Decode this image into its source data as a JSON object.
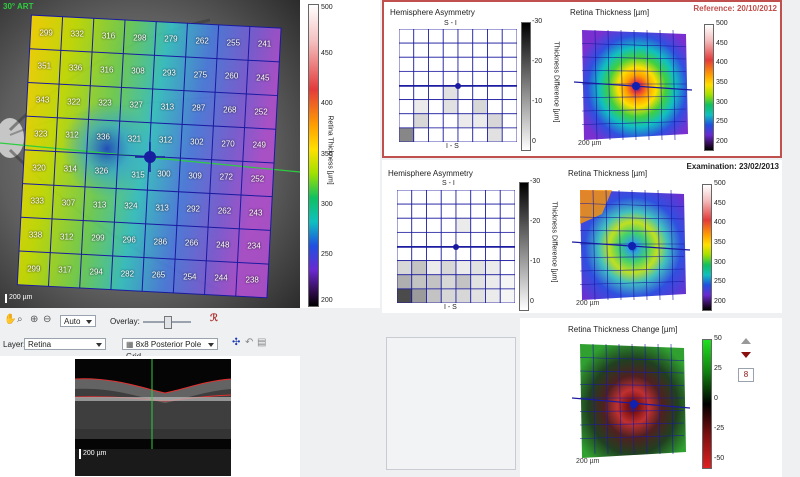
{
  "fundus": {
    "eye_label": "30° ART",
    "scale_label": "200 µm",
    "grid_values": [
      [
        299,
        332,
        316,
        298,
        279,
        262,
        255,
        241
      ],
      [
        351,
        336,
        316,
        308,
        293,
        275,
        260,
        245
      ],
      [
        343,
        322,
        323,
        327,
        313,
        287,
        268,
        252
      ],
      [
        323,
        312,
        336,
        321,
        312,
        302,
        270,
        249
      ],
      [
        320,
        314,
        326,
        315,
        300,
        309,
        272,
        252
      ],
      [
        333,
        307,
        313,
        324,
        313,
        292,
        262,
        243
      ],
      [
        338,
        312,
        299,
        296,
        286,
        266,
        248,
        234
      ],
      [
        299,
        317,
        294,
        282,
        265,
        254,
        244,
        238
      ]
    ]
  },
  "thickness_scale": {
    "title": "Retina Thickness [µm]",
    "ticks": [
      "500",
      "450",
      "400",
      "350",
      "300",
      "250",
      "200"
    ]
  },
  "toolbar": {
    "zoom_value": "Auto",
    "overlay_label": "Overlay:",
    "layer_label": "Layer:",
    "layer_value": "Retina",
    "grid_value": "8x8 Posterior Pole Grid"
  },
  "bscan": {
    "scale_label": "200 µm"
  },
  "reference": {
    "label": "Reference: 20/10/2012",
    "hemi_title": "Hemisphere Asymmetry",
    "hemi_top": "S - I",
    "hemi_bottom": "I - S",
    "diff_title": "Thickness Difference [µm]",
    "diff_ticks": [
      "-30",
      "-20",
      "-10",
      "0"
    ],
    "thick_title": "Retina Thickness [µm]",
    "thick_ticks": [
      "500",
      "450",
      "400",
      "350",
      "300",
      "250",
      "200"
    ],
    "map_scale": "200 µm"
  },
  "examination": {
    "label": "Examination: 23/02/2013",
    "hemi_title": "Hemisphere Asymmetry",
    "hemi_top": "S - I",
    "hemi_bottom": "I - S",
    "diff_title": "Thickness Difference [µm]",
    "diff_ticks": [
      "-30",
      "-20",
      "-10",
      "0"
    ],
    "thick_title": "Retina Thickness [µm]",
    "thick_ticks": [
      "500",
      "450",
      "400",
      "350",
      "300",
      "250",
      "200"
    ],
    "map_scale": "200 µm"
  },
  "change": {
    "title": "Retina Thickness Change [µm]",
    "ticks": [
      "50",
      "25",
      "0",
      "-25",
      "-50"
    ],
    "map_scale": "200 µm",
    "step_value": "8"
  },
  "colors": {
    "reference_border": "#c0504d",
    "reference_text": "#c0504d",
    "grid_line": "#1a1aa0"
  }
}
